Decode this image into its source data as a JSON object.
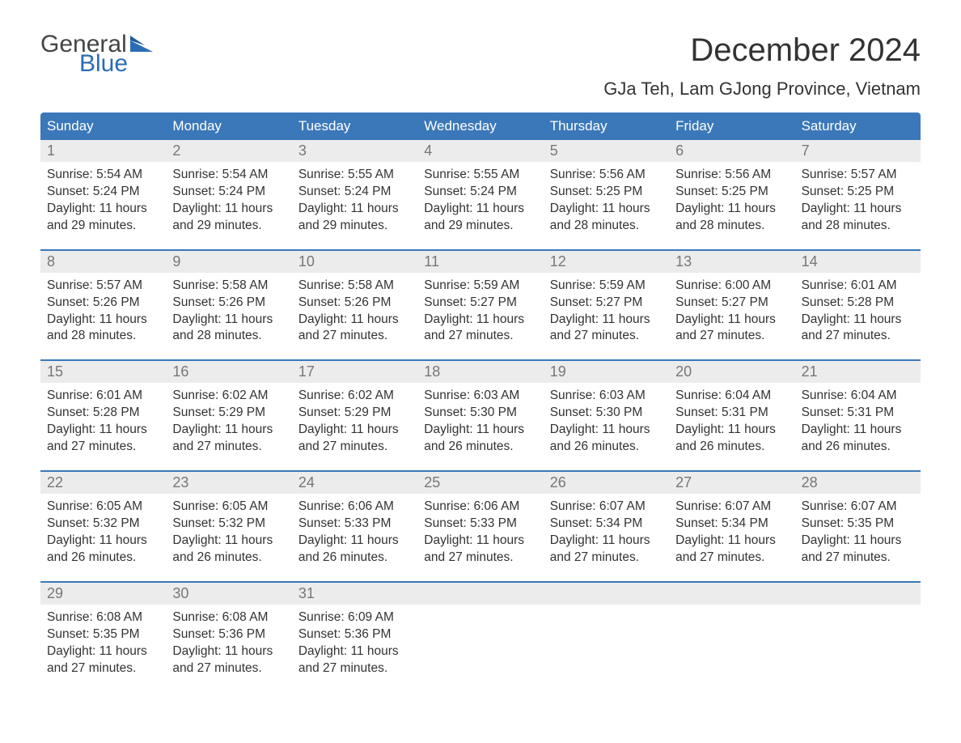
{
  "brand": {
    "part1": "General",
    "part2": "Blue"
  },
  "title": "December 2024",
  "location": "GJa Teh, Lam GJong Province, Vietnam",
  "colors": {
    "header_bg": "#3b78b9",
    "header_text": "#ffffff",
    "daynum_bg": "#ececec",
    "daynum_text": "#777777",
    "body_text": "#333333",
    "week_border": "#3b78b9",
    "brand_blue": "#2a6db6",
    "brand_gray": "#444444",
    "page_bg": "#ffffff"
  },
  "typography": {
    "title_fontsize": 40,
    "location_fontsize": 22,
    "dayheader_fontsize": 17,
    "daynum_fontsize": 18,
    "cell_fontsize": 15.5,
    "logo_fontsize": 30
  },
  "day_names": [
    "Sunday",
    "Monday",
    "Tuesday",
    "Wednesday",
    "Thursday",
    "Friday",
    "Saturday"
  ],
  "labels": {
    "sunrise": "Sunrise: ",
    "sunset": "Sunset: ",
    "daylight": "Daylight: "
  },
  "weeks": [
    [
      {
        "num": "1",
        "sunrise": "5:54 AM",
        "sunset": "5:24 PM",
        "daylight1": "11 hours",
        "daylight2": "and 29 minutes."
      },
      {
        "num": "2",
        "sunrise": "5:54 AM",
        "sunset": "5:24 PM",
        "daylight1": "11 hours",
        "daylight2": "and 29 minutes."
      },
      {
        "num": "3",
        "sunrise": "5:55 AM",
        "sunset": "5:24 PM",
        "daylight1": "11 hours",
        "daylight2": "and 29 minutes."
      },
      {
        "num": "4",
        "sunrise": "5:55 AM",
        "sunset": "5:24 PM",
        "daylight1": "11 hours",
        "daylight2": "and 29 minutes."
      },
      {
        "num": "5",
        "sunrise": "5:56 AM",
        "sunset": "5:25 PM",
        "daylight1": "11 hours",
        "daylight2": "and 28 minutes."
      },
      {
        "num": "6",
        "sunrise": "5:56 AM",
        "sunset": "5:25 PM",
        "daylight1": "11 hours",
        "daylight2": "and 28 minutes."
      },
      {
        "num": "7",
        "sunrise": "5:57 AM",
        "sunset": "5:25 PM",
        "daylight1": "11 hours",
        "daylight2": "and 28 minutes."
      }
    ],
    [
      {
        "num": "8",
        "sunrise": "5:57 AM",
        "sunset": "5:26 PM",
        "daylight1": "11 hours",
        "daylight2": "and 28 minutes."
      },
      {
        "num": "9",
        "sunrise": "5:58 AM",
        "sunset": "5:26 PM",
        "daylight1": "11 hours",
        "daylight2": "and 28 minutes."
      },
      {
        "num": "10",
        "sunrise": "5:58 AM",
        "sunset": "5:26 PM",
        "daylight1": "11 hours",
        "daylight2": "and 27 minutes."
      },
      {
        "num": "11",
        "sunrise": "5:59 AM",
        "sunset": "5:27 PM",
        "daylight1": "11 hours",
        "daylight2": "and 27 minutes."
      },
      {
        "num": "12",
        "sunrise": "5:59 AM",
        "sunset": "5:27 PM",
        "daylight1": "11 hours",
        "daylight2": "and 27 minutes."
      },
      {
        "num": "13",
        "sunrise": "6:00 AM",
        "sunset": "5:27 PM",
        "daylight1": "11 hours",
        "daylight2": "and 27 minutes."
      },
      {
        "num": "14",
        "sunrise": "6:01 AM",
        "sunset": "5:28 PM",
        "daylight1": "11 hours",
        "daylight2": "and 27 minutes."
      }
    ],
    [
      {
        "num": "15",
        "sunrise": "6:01 AM",
        "sunset": "5:28 PM",
        "daylight1": "11 hours",
        "daylight2": "and 27 minutes."
      },
      {
        "num": "16",
        "sunrise": "6:02 AM",
        "sunset": "5:29 PM",
        "daylight1": "11 hours",
        "daylight2": "and 27 minutes."
      },
      {
        "num": "17",
        "sunrise": "6:02 AM",
        "sunset": "5:29 PM",
        "daylight1": "11 hours",
        "daylight2": "and 27 minutes."
      },
      {
        "num": "18",
        "sunrise": "6:03 AM",
        "sunset": "5:30 PM",
        "daylight1": "11 hours",
        "daylight2": "and 26 minutes."
      },
      {
        "num": "19",
        "sunrise": "6:03 AM",
        "sunset": "5:30 PM",
        "daylight1": "11 hours",
        "daylight2": "and 26 minutes."
      },
      {
        "num": "20",
        "sunrise": "6:04 AM",
        "sunset": "5:31 PM",
        "daylight1": "11 hours",
        "daylight2": "and 26 minutes."
      },
      {
        "num": "21",
        "sunrise": "6:04 AM",
        "sunset": "5:31 PM",
        "daylight1": "11 hours",
        "daylight2": "and 26 minutes."
      }
    ],
    [
      {
        "num": "22",
        "sunrise": "6:05 AM",
        "sunset": "5:32 PM",
        "daylight1": "11 hours",
        "daylight2": "and 26 minutes."
      },
      {
        "num": "23",
        "sunrise": "6:05 AM",
        "sunset": "5:32 PM",
        "daylight1": "11 hours",
        "daylight2": "and 26 minutes."
      },
      {
        "num": "24",
        "sunrise": "6:06 AM",
        "sunset": "5:33 PM",
        "daylight1": "11 hours",
        "daylight2": "and 26 minutes."
      },
      {
        "num": "25",
        "sunrise": "6:06 AM",
        "sunset": "5:33 PM",
        "daylight1": "11 hours",
        "daylight2": "and 27 minutes."
      },
      {
        "num": "26",
        "sunrise": "6:07 AM",
        "sunset": "5:34 PM",
        "daylight1": "11 hours",
        "daylight2": "and 27 minutes."
      },
      {
        "num": "27",
        "sunrise": "6:07 AM",
        "sunset": "5:34 PM",
        "daylight1": "11 hours",
        "daylight2": "and 27 minutes."
      },
      {
        "num": "28",
        "sunrise": "6:07 AM",
        "sunset": "5:35 PM",
        "daylight1": "11 hours",
        "daylight2": "and 27 minutes."
      }
    ],
    [
      {
        "num": "29",
        "sunrise": "6:08 AM",
        "sunset": "5:35 PM",
        "daylight1": "11 hours",
        "daylight2": "and 27 minutes."
      },
      {
        "num": "30",
        "sunrise": "6:08 AM",
        "sunset": "5:36 PM",
        "daylight1": "11 hours",
        "daylight2": "and 27 minutes."
      },
      {
        "num": "31",
        "sunrise": "6:09 AM",
        "sunset": "5:36 PM",
        "daylight1": "11 hours",
        "daylight2": "and 27 minutes."
      },
      null,
      null,
      null,
      null
    ]
  ]
}
